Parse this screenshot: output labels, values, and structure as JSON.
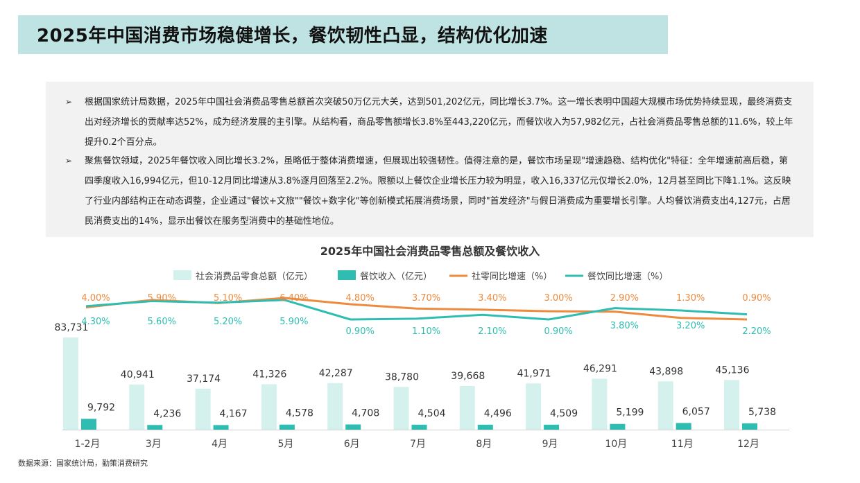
{
  "header": {
    "title": "2025年中国消费市场稳健增长，餐饮韧性凸显，结构优化加速"
  },
  "summary": {
    "bullet": "➢",
    "paragraphs": [
      "根据国家统计局数据，2025年中国社会消费品零售总额首次突破50万亿元大关，达到501,202亿元，同比增长3.7%。这一增长表明中国超大规模市场优势持续显现，最终消费支出对经济增长的贡献率达52%，成为经济发展的主引擎。从结构看，商品零售额增长3.8%至443,220亿元，而餐饮收入为57,982亿元，占社会消费品零售总额的11.6%，较上年提升0.2个百分点。",
      "聚焦餐饮领域，2025年餐饮收入同比增长3.2%，虽略低于整体消费增速，但展现出较强韧性。值得注意的是，餐饮市场呈现\"增速趋稳、结构优化\"特征：全年增速前高后稳，第四季度收入16,994亿元，但10-12月同比增速从3.8%逐月回落至2.2%。限额以上餐饮企业增长压力较为明显，收入16,337亿元仅增长2.0%，12月甚至同比下降1.1%。这反映了行业内部结构正在动态调整，企业通过\"餐饮+文旅\"\"餐饮+数字化\"等创新模式拓展消费场景，同时\"首发经济\"与假日消费成为重要增长引擎。人均餐饮消费支出4,127元，占居民消费支出的14%，显示出餐饮在服务型消费中的基础性地位。"
    ]
  },
  "chart_data": {
    "type": "bar",
    "title": "2025年中国社会消费品零售总额及餐饮收入",
    "categories": [
      "1-2月",
      "3月",
      "4月",
      "5月",
      "6月",
      "7月",
      "8月",
      "9月",
      "10月",
      "11月",
      "12月"
    ],
    "series": [
      {
        "name": "社会消费品零食总额（亿元）",
        "type": "bar",
        "color": "#d4f1ee",
        "values": [
          83731,
          40941,
          37174,
          41326,
          42287,
          38780,
          39668,
          41971,
          46291,
          43898,
          45136
        ],
        "labels": [
          "83,731",
          "40,941",
          "37,174",
          "41,326",
          "42,287",
          "38,780",
          "39,668",
          "41,971",
          "46,291",
          "43,898",
          "45,136"
        ]
      },
      {
        "name": "餐饮收入（亿元）",
        "type": "bar",
        "color": "#2fbdb1",
        "values": [
          9792,
          4236,
          4167,
          4578,
          4708,
          4504,
          4496,
          4509,
          5199,
          6057,
          5738
        ],
        "labels": [
          "9,792",
          "4,236",
          "4,167",
          "4,578",
          "4,708",
          "4,504",
          "4,496",
          "4,509",
          "5,199",
          "6,057",
          "5,738"
        ]
      },
      {
        "name": "社零同比增速（%）",
        "type": "line",
        "color": "#ed8a3d",
        "values": [
          4.0,
          5.9,
          5.1,
          6.4,
          4.8,
          3.7,
          3.4,
          3.0,
          2.9,
          1.3,
          0.9
        ],
        "labels": [
          "4.00%",
          "5.90%",
          "5.10%",
          "6.40%",
          "4.80%",
          "3.70%",
          "3.40%",
          "3.00%",
          "2.90%",
          "1.30%",
          "0.90%"
        ]
      },
      {
        "name": "餐饮同比增速（%）",
        "type": "line",
        "color": "#2fbdb1",
        "values": [
          4.3,
          5.6,
          5.2,
          5.9,
          0.9,
          1.1,
          2.1,
          0.9,
          3.8,
          3.2,
          2.2
        ],
        "labels": [
          "4.30%",
          "5.60%",
          "5.20%",
          "5.90%",
          "0.90%",
          "1.10%",
          "2.10%",
          "0.90%",
          "3.80%",
          "3.20%",
          "2.20%"
        ]
      }
    ],
    "legend_position": "top",
    "grid": false
  },
  "footer": {
    "source": "数据来源：国家统计局，勤策消费研究"
  }
}
